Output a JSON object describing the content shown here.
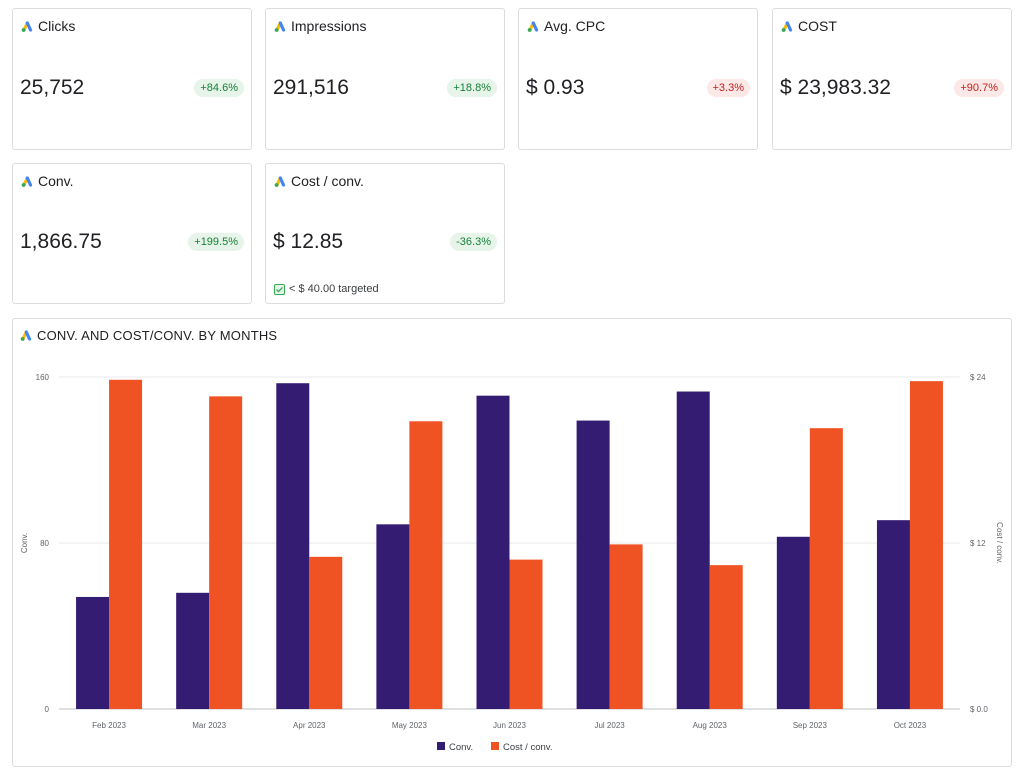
{
  "cards": [
    {
      "title": "Clicks",
      "value": "25,752",
      "change": "+84.6%",
      "trend": "positive"
    },
    {
      "title": "Impressions",
      "value": "291,516",
      "change": "+18.8%",
      "trend": "positive"
    },
    {
      "title": "Avg. CPC",
      "value": "$ 0.93",
      "change": "+3.3%",
      "trend": "negative"
    },
    {
      "title": "COST",
      "value": "$ 23,983.32",
      "change": "+90.7%",
      "trend": "negative"
    },
    {
      "title": "Conv.",
      "value": "1,866.75",
      "change": "+199.5%",
      "trend": "positive"
    },
    {
      "title": "Cost / conv.",
      "value": "$ 12.85",
      "change": "-36.3%",
      "trend": "positive",
      "target": "< $ 40.00 targeted"
    }
  ],
  "colors": {
    "positive_bg": "#e6f4ea",
    "positive_text": "#188038",
    "negative_bg": "#fce8e6",
    "negative_text": "#c5221f",
    "conv": "#341c73",
    "cost_per_conv": "#f05323"
  },
  "icons": {
    "card_icon": "google-ads-icon",
    "target_icon": "checkbox-checked-icon"
  },
  "chart_data": {
    "type": "bar",
    "title": "CONV. AND COST/CONV. BY MONTHS",
    "categories": [
      "Feb 2023",
      "Mar 2023",
      "Apr 2023",
      "May 2023",
      "Jun 2023",
      "Jul 2023",
      "Aug 2023",
      "Sep 2023",
      "Oct 2023"
    ],
    "series": [
      {
        "name": "Conv.",
        "axis": "left",
        "color": "#341c73",
        "values": [
          54,
          56,
          157,
          89,
          151,
          139,
          153,
          83,
          91
        ]
      },
      {
        "name": "Cost / conv.",
        "axis": "right",
        "color": "#f05323",
        "values": [
          23.8,
          22.6,
          11.0,
          20.8,
          10.8,
          11.9,
          10.4,
          20.3,
          23.7
        ]
      }
    ],
    "ylabel": "Conv.",
    "y2label": "Cost / conv.",
    "ylim": [
      0,
      160
    ],
    "y2lim": [
      0,
      24
    ],
    "yticks": [
      "0",
      "80",
      "160"
    ],
    "y2ticks": [
      "$ 0.0",
      "$ 12",
      "$ 24"
    ],
    "grid": true,
    "legend": "bottom-center"
  }
}
